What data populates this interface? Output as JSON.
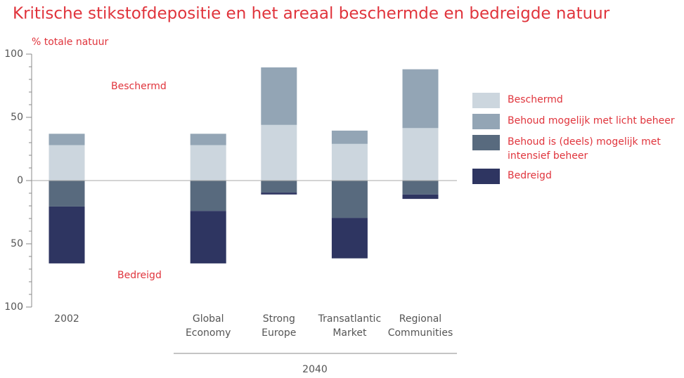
{
  "chart_data": {
    "type": "bar",
    "stacked": true,
    "title": "Kritische stikstofdepositie en het areaal beschermde en bedreigde natuur",
    "y_label": "% totale natuur",
    "categories": [
      "2002",
      null,
      "Global Economy",
      "Strong Europe",
      "Transatlantic Market",
      "Regional Communities"
    ],
    "group_label": "2040",
    "series": [
      {
        "name": "Beschermd",
        "color": "#ccd6de",
        "values": [
          28,
          null,
          28,
          44,
          29,
          41.5
        ]
      },
      {
        "name": "Behoud mogelijk met licht beheer",
        "color": "#93a5b5",
        "values": [
          9,
          null,
          9,
          45.5,
          10.5,
          46.5
        ]
      },
      {
        "name": "Behoud is (deels) mogelijk met intensief beheer",
        "color": "#586a7e",
        "values": [
          -20.5,
          null,
          -24,
          -9.5,
          -29.5,
          -11
        ]
      },
      {
        "name": "Bedreigd",
        "color": "#2e3561",
        "values": [
          -45,
          null,
          -41.5,
          -1.5,
          -32,
          -3.5
        ]
      }
    ],
    "annotations": [
      "Beschermd",
      "Bedreigd"
    ],
    "ylim": [
      -100,
      100
    ],
    "yticks": [
      {
        "value": -100,
        "label": "100"
      },
      {
        "value": -50,
        "label": "50"
      },
      0,
      50,
      100
    ],
    "yminorticks": [
      -90,
      -80,
      -70,
      -60,
      -40,
      -30,
      -20,
      -10,
      10,
      20,
      30,
      40,
      60,
      70,
      80,
      90
    ],
    "legend": "right"
  }
}
